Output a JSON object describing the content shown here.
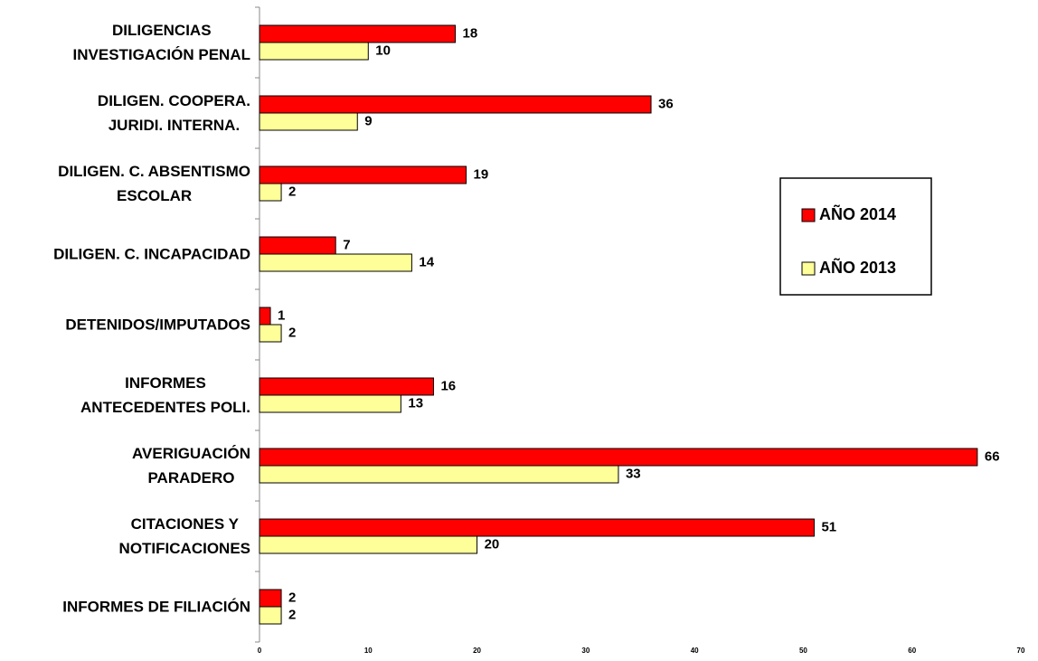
{
  "chart_data": {
    "type": "hbar",
    "categories": [
      "DILIGENCIAS\nINVESTIGACIÓN PENAL",
      "DILIGEN. COOPERA.\nJURIDI. INTERNA.",
      "DILIGEN. C. ABSENTISMO\nESCOLAR",
      "DILIGEN. C. INCAPACIDAD",
      "DETENIDOS/IMPUTADOS",
      "INFORMES\nANTECEDENTES POLI.",
      "AVERIGUACIÓN\nPARADERO",
      "CITACIONES Y\nNOTIFICACIONES",
      "INFORMES DE FILIACIÓN"
    ],
    "series": [
      {
        "name": "AÑO 2014",
        "color": "#ff0000",
        "values": [
          18,
          36,
          19,
          7,
          1,
          16,
          66,
          51,
          2
        ]
      },
      {
        "name": "AÑO 2013",
        "color": "#ffff99",
        "values": [
          10,
          9,
          2,
          14,
          2,
          13,
          33,
          20,
          2
        ]
      }
    ],
    "xlim": [
      0,
      70
    ],
    "xticks": [
      0,
      10,
      20,
      30,
      40,
      50,
      60,
      70
    ],
    "legend": "right"
  }
}
